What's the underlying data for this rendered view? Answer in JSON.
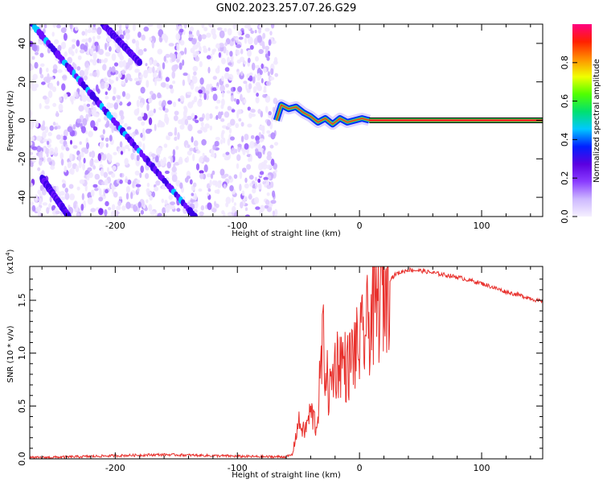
{
  "title": "GN02.2023.257.07.26.G29",
  "colors": {
    "snr_line": "#e8302c",
    "frame": "#000000",
    "colorbar_stops": [
      "#f5f0ff",
      "#cdb8ff",
      "#8a3cff",
      "#5a00e0",
      "#0020ff",
      "#00c8ff",
      "#00e070",
      "#50ff00",
      "#f0ff00",
      "#ff9000",
      "#ff2000",
      "#ff0080"
    ]
  },
  "chart_data": [
    {
      "type": "heatmap",
      "xlabel": "Height of straight line (km)",
      "ylabel": "Frequency (Hz)",
      "xlim": [
        -270,
        150
      ],
      "ylim": [
        -50,
        50
      ],
      "xticks": [
        -200,
        -100,
        0,
        100
      ],
      "yticks": [
        -40,
        -20,
        0,
        20,
        40
      ],
      "grid": false,
      "features": {
        "noise_region_x": [
          -270,
          -68
        ],
        "diagonal_stripes": [
          {
            "x_start": -268,
            "f_start": 50,
            "x_end": -135,
            "f_end": -50
          },
          {
            "x_start": -210,
            "f_start": 50,
            "x_end": -180,
            "f_end": 30
          },
          {
            "x_start": -260,
            "f_start": -30,
            "x_end": -238,
            "f_end": -50
          }
        ],
        "carrier_line_freq": 0,
        "carrier_start_x": -68
      },
      "colorbar": {
        "label": "Normalized spectral amplitude",
        "range": [
          0,
          1
        ],
        "ticks": [
          0.0,
          0.2,
          0.4,
          0.6,
          0.8
        ]
      }
    },
    {
      "type": "line",
      "xlabel": "Height of straight line (km)",
      "ylabel": "SNR (10 * v/v)",
      "y_multiplier_label": "(x10",
      "y_multiplier_exp": "4",
      "y_multiplier_close": ")",
      "xlim": [
        -270,
        150
      ],
      "ylim": [
        0,
        1.82
      ],
      "xticks": [
        -200,
        -100,
        0,
        100
      ],
      "yticks": [
        0.0,
        0.5,
        1.0,
        1.5
      ],
      "ytick_labels": [
        "0.0",
        "0.5",
        "1.0",
        "1.5"
      ],
      "grid": false,
      "series": [
        {
          "x": [
            -270,
            -230,
            -200,
            -160,
            -120,
            -80,
            -60,
            -55,
            -50,
            -45,
            -40,
            -35,
            -30,
            -25,
            -20,
            -15,
            -10,
            -5,
            0,
            5,
            10,
            15,
            20,
            25,
            30,
            40,
            50,
            60,
            70,
            80,
            90,
            100,
            110,
            120,
            130,
            140,
            150
          ],
          "values": [
            0.01,
            0.02,
            0.03,
            0.04,
            0.03,
            0.02,
            0.02,
            0.04,
            0.35,
            0.25,
            0.45,
            0.3,
            1.1,
            0.6,
            0.9,
            0.95,
            0.85,
            1.0,
            1.05,
            1.2,
            1.35,
            1.45,
            1.62,
            1.7,
            1.75,
            1.79,
            1.78,
            1.76,
            1.74,
            1.72,
            1.69,
            1.66,
            1.62,
            1.58,
            1.55,
            1.52,
            1.48
          ]
        }
      ]
    }
  ]
}
